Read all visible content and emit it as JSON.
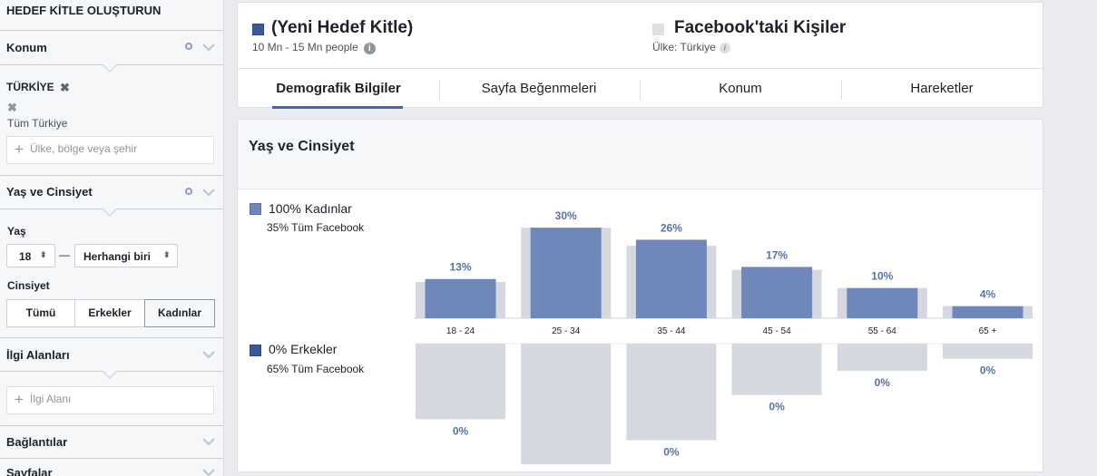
{
  "sidebar": {
    "title": "HEDEF KİTLE OLUŞTURUN",
    "location": {
      "heading": "Konum",
      "country": "TÜRKİYE",
      "scope": "Tüm Türkiye",
      "placeholder": "Ülke, bölge veya şehir"
    },
    "age_gender": {
      "heading": "Yaş ve Cinsiyet",
      "age_label": "Yaş",
      "age_min": "18",
      "age_separator": "—",
      "age_max": "Herhangi biri",
      "gender_label": "Cinsiyet",
      "gender_options": [
        "Tümü",
        "Erkekler",
        "Kadınlar"
      ],
      "gender_selected": "Kadınlar"
    },
    "interests": {
      "heading": "İlgi Alanları",
      "placeholder": "İlgi Alanı"
    },
    "connections": {
      "heading": "Bağlantılar"
    },
    "pages": {
      "heading": "Sayfalar"
    }
  },
  "header": {
    "audience": {
      "name": "(Yeni Hedef Kitle)",
      "size": "10 Mn - 15 Mn people",
      "color": "#3b5998"
    },
    "facebook": {
      "name": "Facebook'taki Kişiler",
      "country": "Ülke: Türkiye",
      "color": "#dddfe2"
    },
    "tabs": [
      "Demografik Bilgiler",
      "Sayfa Beğenmeleri",
      "Konum",
      "Hareketler"
    ],
    "active_tab": "Demografik Bilgiler"
  },
  "demographics": {
    "title": "Yaş ve Cinsiyet",
    "women": {
      "label": "100% Kadınlar",
      "sub": "35% Tüm Facebook",
      "color": "#6f87b9"
    },
    "men": {
      "label": "0% Erkekler",
      "sub": "65% Tüm Facebook",
      "color": "#3b5998"
    }
  },
  "chart_data": {
    "type": "bar",
    "categories": [
      "18 - 24",
      "25 - 34",
      "35 - 44",
      "45 - 54",
      "55 - 64",
      "65 +"
    ],
    "series": [
      {
        "name": "100% Kadınlar",
        "values": [
          13,
          30,
          26,
          17,
          10,
          4
        ],
        "labels": [
          "13%",
          "30%",
          "26%",
          "17%",
          "10%",
          "4%"
        ]
      },
      {
        "name": "0% Erkekler",
        "values": [
          0,
          0,
          0,
          0,
          0,
          0
        ],
        "labels": [
          "0%",
          "0%",
          "0%",
          "0%",
          "0%",
          "0%"
        ]
      }
    ],
    "benchmark_women": [
      12,
      30,
      24,
      16,
      10,
      4
    ],
    "benchmark_men": [
      25,
      40,
      32,
      17,
      9,
      5
    ],
    "colors": {
      "selected": "#6f87b9",
      "benchmark": "#d5d8df",
      "label": "#5872a7"
    }
  }
}
